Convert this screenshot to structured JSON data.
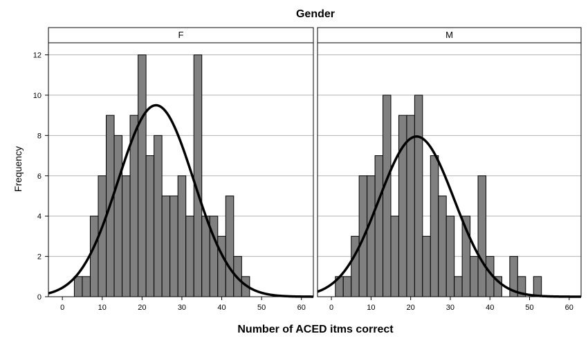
{
  "chart_data": {
    "type": "bar",
    "title": "Gender",
    "xlabel": "Number of ACED itms correct",
    "ylabel": "Frequency",
    "xlim": [
      -3.5,
      63
    ],
    "ylim": [
      0,
      12.6
    ],
    "xticks": [
      "0",
      "10",
      "20",
      "30",
      "40",
      "50",
      "60"
    ],
    "yticks": [
      "0",
      "2",
      "4",
      "6",
      "8",
      "10",
      "12"
    ],
    "bin_width": 2,
    "grid": "horizontal",
    "colors": {
      "bar_fill": "#808080",
      "bar_stroke": "#000000",
      "curve": "#000000",
      "grid": "#b3b3b3"
    },
    "panels": [
      {
        "name": "F",
        "bins": [
          {
            "start": 3,
            "count": 1
          },
          {
            "start": 5,
            "count": 1
          },
          {
            "start": 7,
            "count": 4
          },
          {
            "start": 9,
            "count": 6
          },
          {
            "start": 11,
            "count": 9
          },
          {
            "start": 13,
            "count": 8
          },
          {
            "start": 15,
            "count": 6
          },
          {
            "start": 17,
            "count": 9
          },
          {
            "start": 19,
            "count": 12
          },
          {
            "start": 21,
            "count": 7
          },
          {
            "start": 23,
            "count": 8
          },
          {
            "start": 25,
            "count": 5
          },
          {
            "start": 27,
            "count": 5
          },
          {
            "start": 29,
            "count": 6
          },
          {
            "start": 31,
            "count": 4
          },
          {
            "start": 33,
            "count": 12
          },
          {
            "start": 35,
            "count": 4
          },
          {
            "start": 37,
            "count": 4
          },
          {
            "start": 39,
            "count": 3
          },
          {
            "start": 41,
            "count": 5
          },
          {
            "start": 43,
            "count": 2
          },
          {
            "start": 45,
            "count": 1
          }
        ],
        "normal_curve": {
          "mean": 23.5,
          "sd": 9.5,
          "peak": 9.5
        }
      },
      {
        "name": "M",
        "bins": [
          {
            "start": 1,
            "count": 1
          },
          {
            "start": 3,
            "count": 1
          },
          {
            "start": 5,
            "count": 3
          },
          {
            "start": 7,
            "count": 6
          },
          {
            "start": 9,
            "count": 6
          },
          {
            "start": 11,
            "count": 7
          },
          {
            "start": 13,
            "count": 10
          },
          {
            "start": 15,
            "count": 4
          },
          {
            "start": 17,
            "count": 9
          },
          {
            "start": 19,
            "count": 9
          },
          {
            "start": 21,
            "count": 10
          },
          {
            "start": 23,
            "count": 3
          },
          {
            "start": 25,
            "count": 7
          },
          {
            "start": 27,
            "count": 5
          },
          {
            "start": 29,
            "count": 4
          },
          {
            "start": 31,
            "count": 1
          },
          {
            "start": 33,
            "count": 4
          },
          {
            "start": 35,
            "count": 2
          },
          {
            "start": 37,
            "count": 6
          },
          {
            "start": 39,
            "count": 2
          },
          {
            "start": 41,
            "count": 1
          },
          {
            "start": 45,
            "count": 2
          },
          {
            "start": 47,
            "count": 1
          },
          {
            "start": 51,
            "count": 1
          }
        ],
        "normal_curve": {
          "mean": 21.5,
          "sd": 9.5,
          "peak": 7.95
        }
      }
    ]
  }
}
